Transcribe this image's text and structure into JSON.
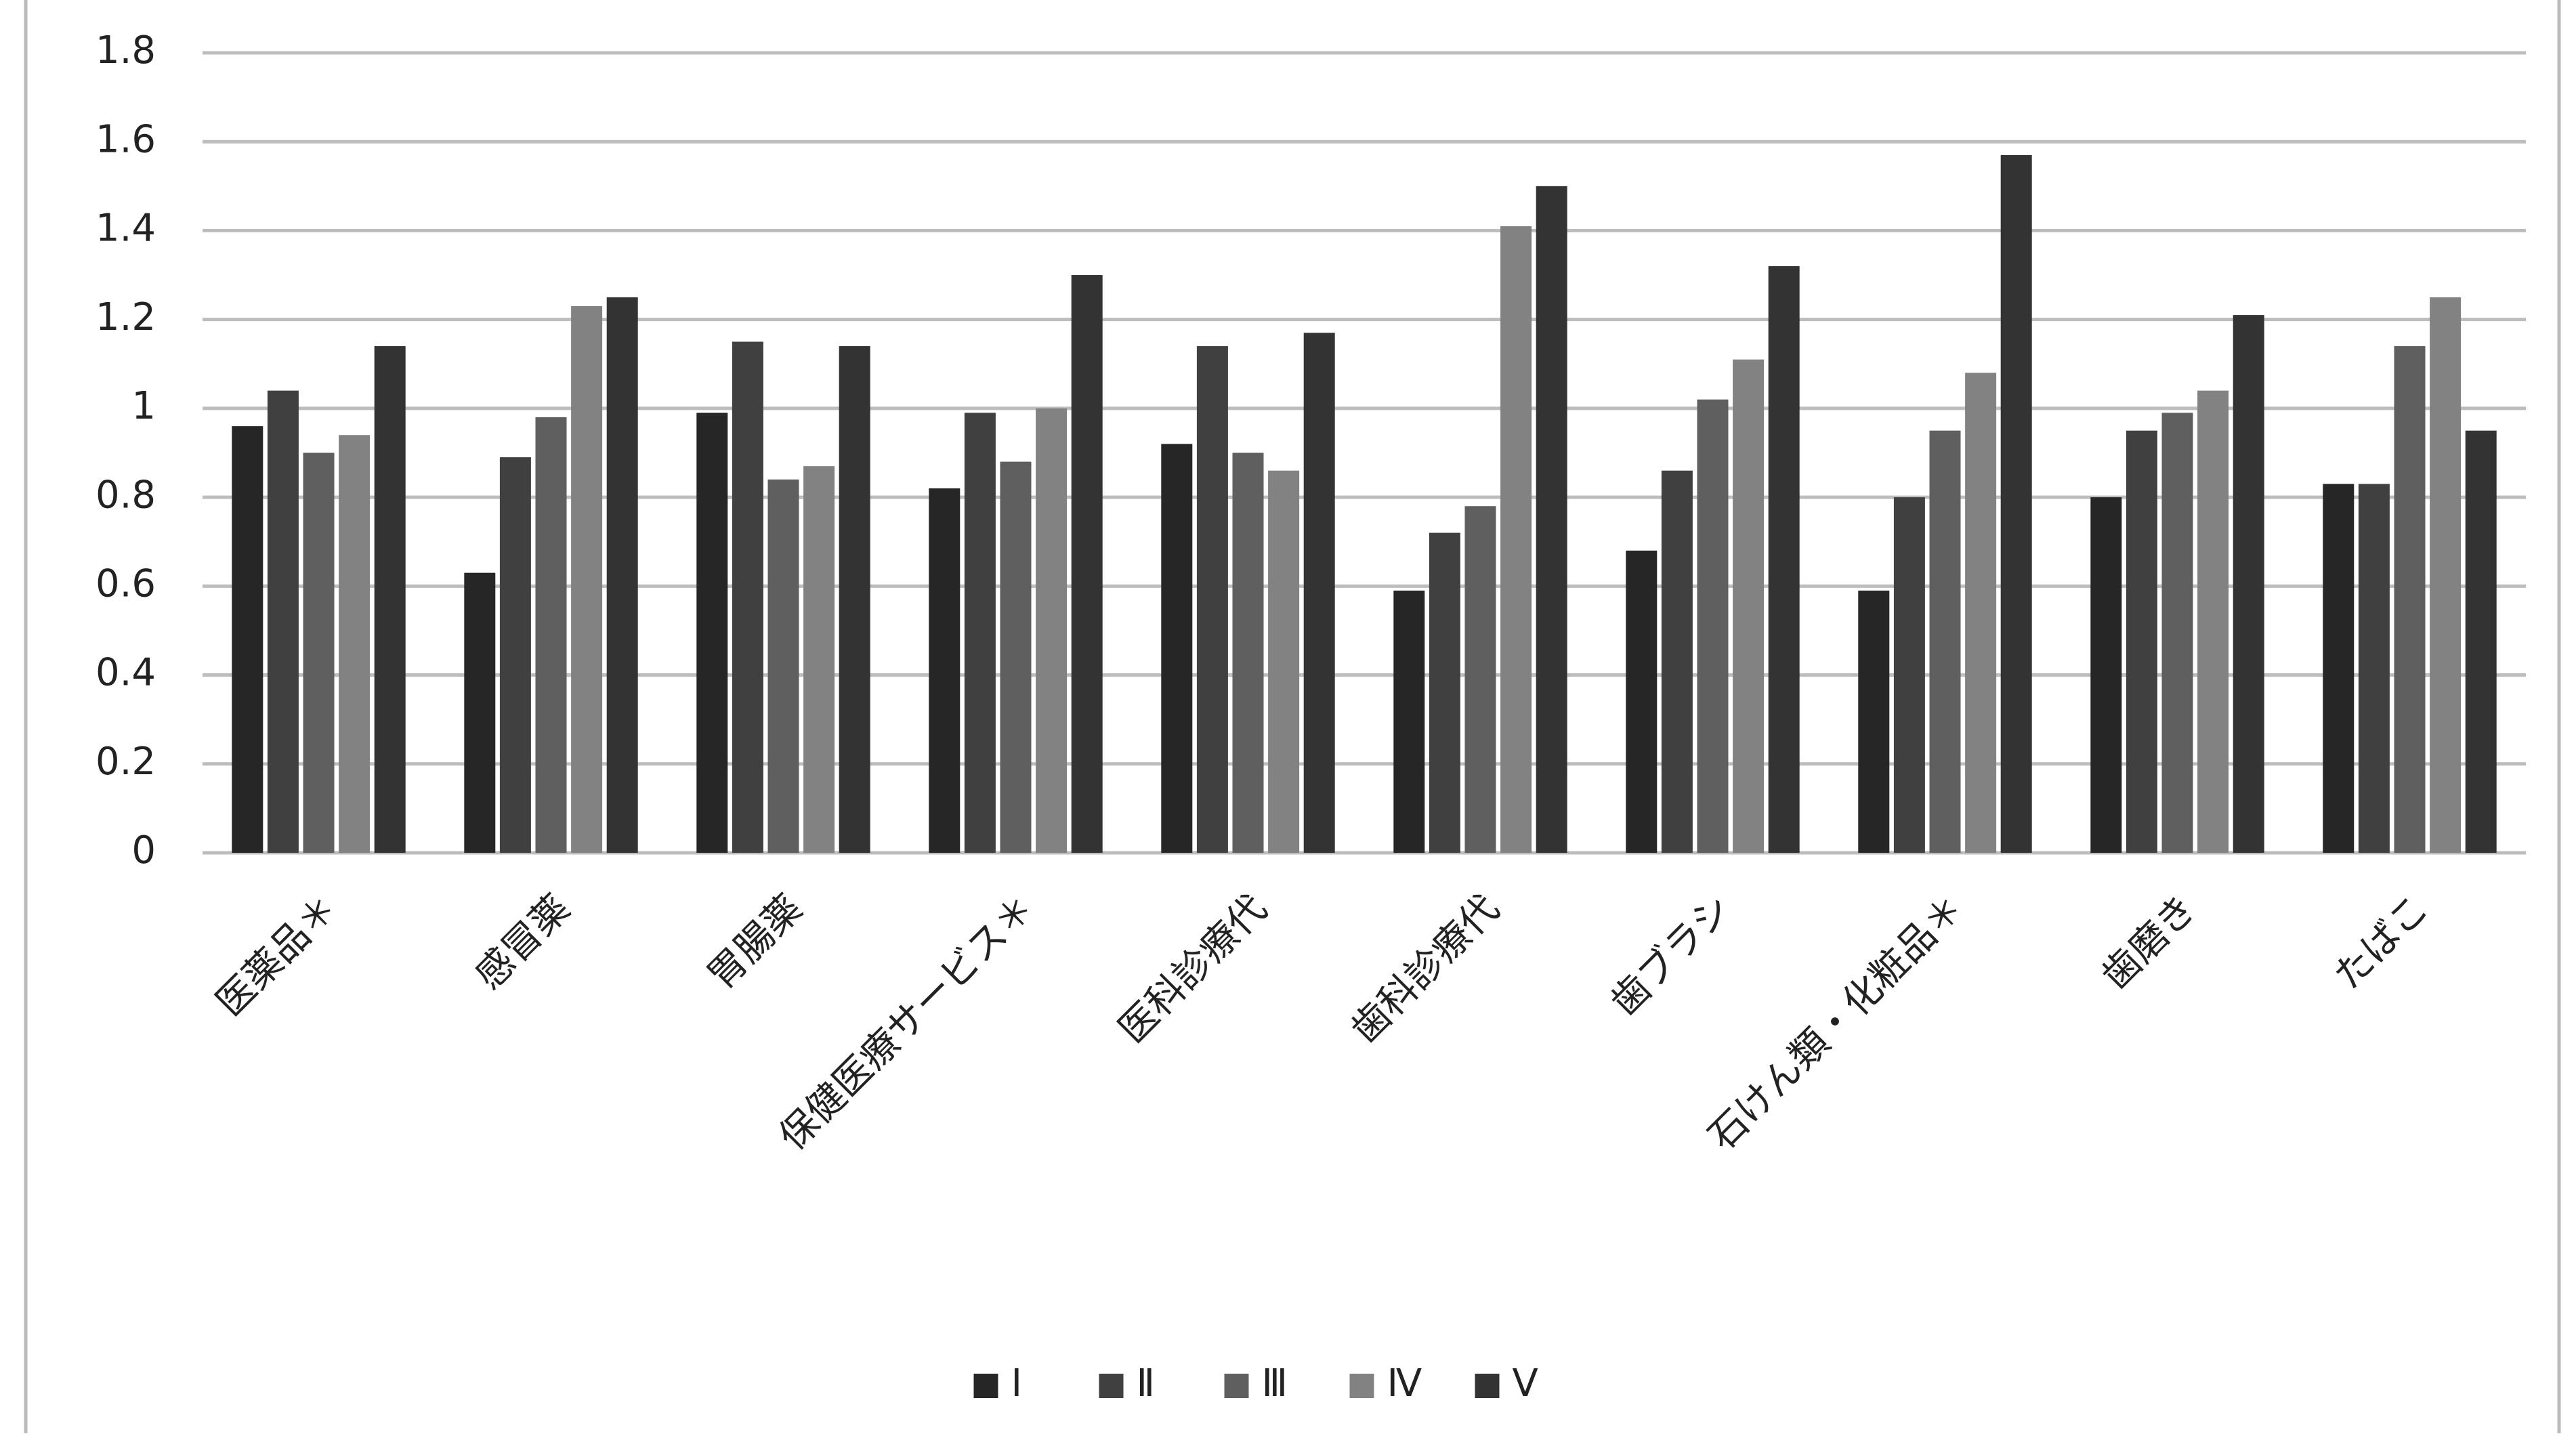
{
  "chart_data": {
    "type": "bar",
    "categories": [
      "医薬品＊",
      "感冒薬",
      "胃腸薬",
      "保健医療サービス＊",
      "医科診療代",
      "歯科診療代",
      "歯ブラシ",
      "石けん類・化粧品＊",
      "歯磨き",
      "たばこ"
    ],
    "series": [
      {
        "name": "Ⅰ",
        "color": "#262626",
        "values": [
          0.96,
          0.63,
          0.99,
          0.82,
          0.92,
          0.59,
          0.68,
          0.59,
          0.8,
          0.83
        ]
      },
      {
        "name": "Ⅱ",
        "color": "#404040",
        "values": [
          1.04,
          0.89,
          1.15,
          0.99,
          1.14,
          0.72,
          0.86,
          0.8,
          0.95,
          0.83
        ]
      },
      {
        "name": "Ⅲ",
        "color": "#5f5f5f",
        "values": [
          0.9,
          0.98,
          0.84,
          0.88,
          0.9,
          0.78,
          1.02,
          0.95,
          0.99,
          1.14
        ]
      },
      {
        "name": "Ⅳ",
        "color": "#828282",
        "values": [
          0.94,
          1.23,
          0.87,
          1.0,
          0.86,
          1.41,
          1.11,
          1.08,
          1.04,
          1.25
        ]
      },
      {
        "name": "Ⅴ",
        "color": "#333333",
        "values": [
          1.14,
          1.25,
          1.14,
          1.3,
          1.17,
          1.5,
          1.32,
          1.57,
          1.21,
          0.95
        ]
      }
    ],
    "ylim": [
      0,
      1.8
    ],
    "yticks": [
      0,
      0.2,
      0.4,
      0.6,
      0.8,
      1,
      1.2,
      1.4,
      1.6,
      1.8
    ],
    "grid": true,
    "legend": "bottom"
  }
}
